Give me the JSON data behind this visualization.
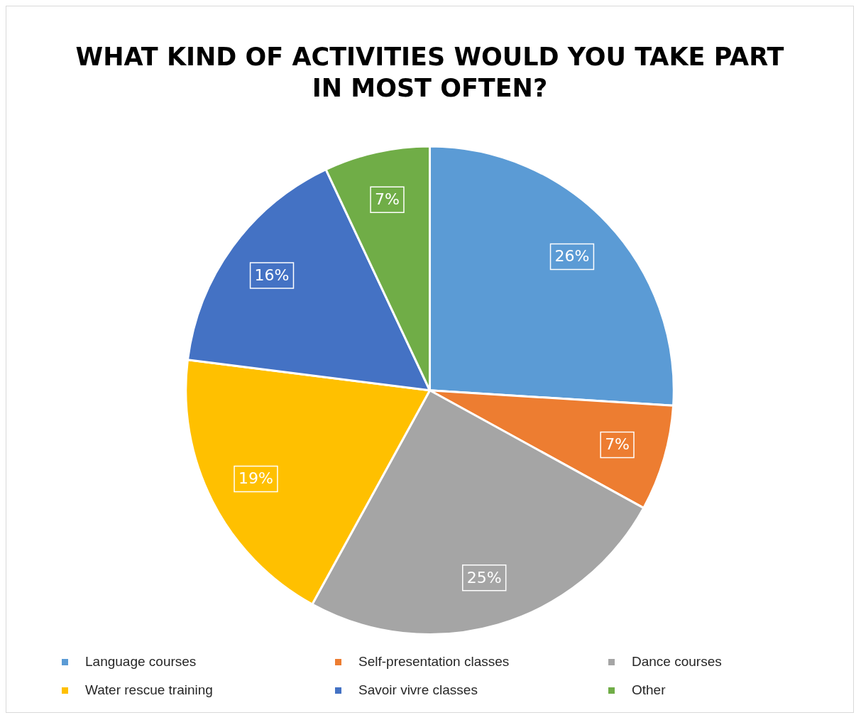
{
  "chart_data": {
    "type": "pie",
    "title": "WHAT KIND OF ACTIVITIES WOULD YOU TAKE PART IN MOST OFTEN?",
    "categories": [
      "Language courses",
      "Self-presentation classes",
      "Dance courses",
      "Water rescue training",
      "Savoir vivre classes",
      "Other"
    ],
    "values": [
      26,
      7,
      25,
      19,
      16,
      7
    ],
    "colors": [
      "#5b9bd5",
      "#ed7d31",
      "#a5a5a5",
      "#ffc000",
      "#4472c4",
      "#70ad47"
    ],
    "value_labels": [
      "26%",
      "7%",
      "25%",
      "19%",
      "16%",
      "7%"
    ],
    "legend": "bottom"
  }
}
